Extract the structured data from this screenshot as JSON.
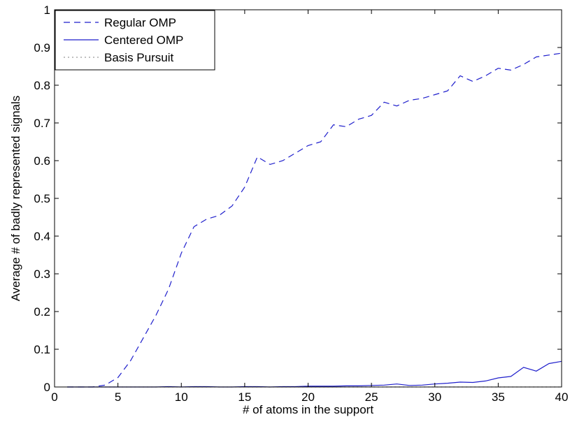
{
  "chart_data": {
    "type": "line",
    "xlabel": "# of atoms in the support",
    "ylabel": "Average # of badly represented signals",
    "xlim": [
      0,
      40
    ],
    "ylim": [
      0,
      1
    ],
    "xticks": [
      0,
      5,
      10,
      15,
      20,
      25,
      30,
      35,
      40
    ],
    "yticks": [
      0,
      0.1,
      0.2,
      0.3,
      0.4,
      0.5,
      0.6,
      0.7,
      0.8,
      0.9,
      1
    ],
    "grid": false,
    "legend_position": "top-left",
    "x": [
      1,
      2,
      3,
      4,
      5,
      6,
      7,
      8,
      9,
      10,
      11,
      12,
      13,
      14,
      15,
      16,
      17,
      18,
      19,
      20,
      21,
      22,
      23,
      24,
      25,
      26,
      27,
      28,
      29,
      30,
      31,
      32,
      33,
      34,
      35,
      36,
      37,
      38,
      39,
      40
    ],
    "series": [
      {
        "name": "Regular OMP",
        "color": "#1f1fcc",
        "style": "dashed",
        "values": [
          0,
          0,
          0,
          0.005,
          0.025,
          0.07,
          0.13,
          0.19,
          0.26,
          0.355,
          0.425,
          0.445,
          0.455,
          0.48,
          0.53,
          0.61,
          0.59,
          0.6,
          0.62,
          0.64,
          0.65,
          0.695,
          0.69,
          0.71,
          0.72,
          0.755,
          0.745,
          0.76,
          0.765,
          0.775,
          0.785,
          0.825,
          0.81,
          0.825,
          0.845,
          0.84,
          0.855,
          0.875,
          0.88,
          0.885
        ]
      },
      {
        "name": "Centered OMP",
        "color": "#1f1fcc",
        "style": "solid",
        "values": [
          0,
          0,
          0,
          0,
          0,
          0,
          0,
          0,
          0.001,
          0,
          0.001,
          0.001,
          0,
          0,
          0.001,
          0.001,
          0,
          0.001,
          0.001,
          0.002,
          0.002,
          0.002,
          0.003,
          0.003,
          0.004,
          0.005,
          0.008,
          0.004,
          0.005,
          0.008,
          0.01,
          0.013,
          0.012,
          0.016,
          0.024,
          0.028,
          0.052,
          0.042,
          0.062,
          0.068
        ]
      },
      {
        "name": "Basis Pursuit",
        "color": "#999999",
        "style": "dotted",
        "values": [
          0,
          0,
          0,
          0,
          0,
          0,
          0,
          0,
          0,
          0,
          0,
          0,
          0,
          0,
          0,
          0,
          0,
          0,
          0,
          0,
          0,
          0,
          0,
          0,
          0,
          0,
          0,
          0,
          0,
          0,
          0,
          0,
          0,
          0,
          0,
          0,
          0,
          0,
          0,
          0
        ]
      }
    ]
  }
}
